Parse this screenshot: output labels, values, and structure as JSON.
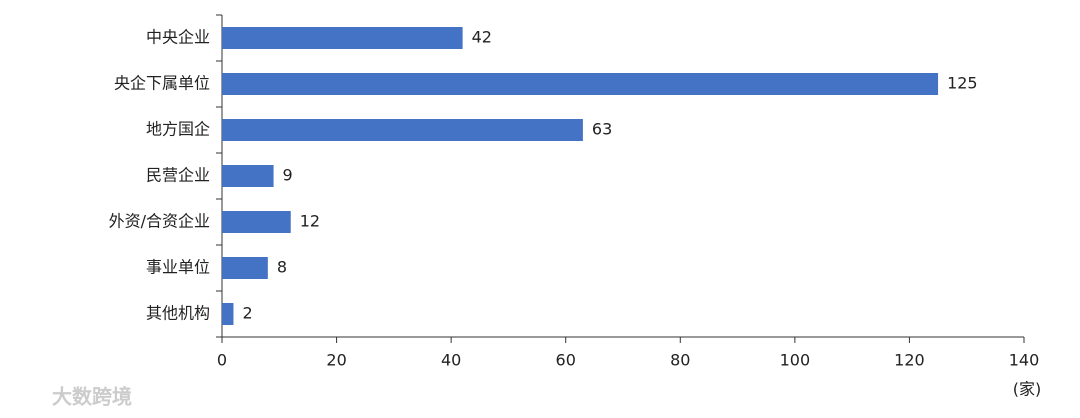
{
  "chart_data": {
    "type": "bar",
    "orientation": "horizontal",
    "categories": [
      "中央企业",
      "央企下属单位",
      "地方国企",
      "民营企业",
      "外资/合资企业",
      "事业单位",
      "其他机构"
    ],
    "values": [
      42,
      125,
      63,
      9,
      12,
      8,
      2
    ],
    "color": "#4472c4",
    "xlim": [
      0,
      140
    ],
    "xticks": [
      0,
      20,
      40,
      60,
      80,
      100,
      120,
      140
    ],
    "x_label": "(家)",
    "watermark": "大数跨境"
  }
}
